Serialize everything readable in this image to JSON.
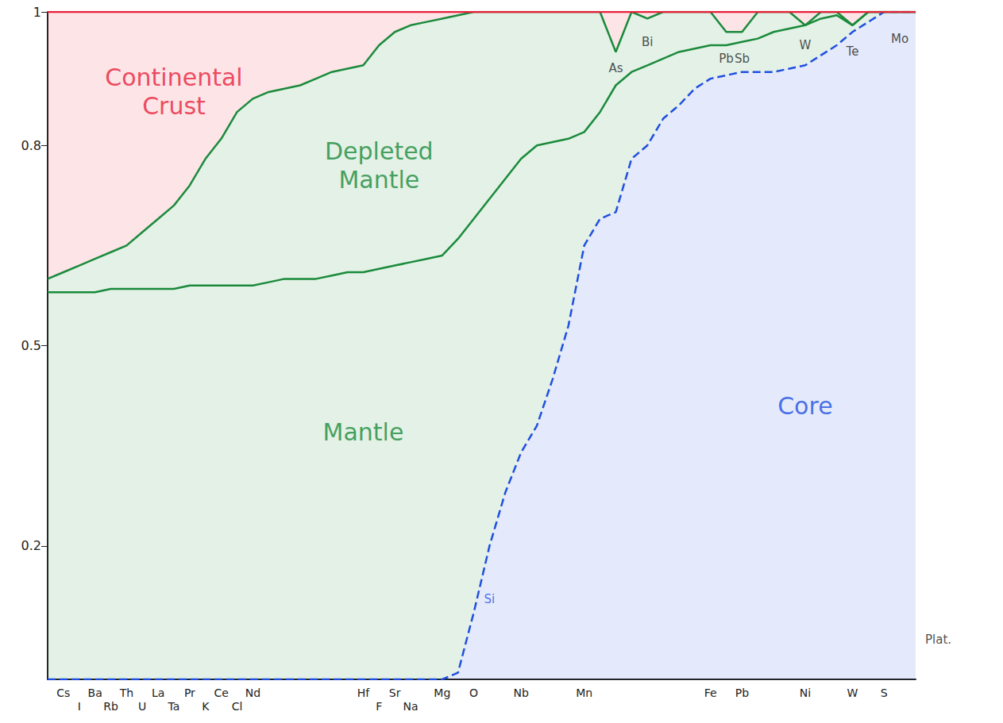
{
  "chart_data": {
    "type": "area",
    "stacked": true,
    "grid": false,
    "categories": [
      null,
      "Cs",
      "I",
      "Ba",
      "Rb",
      "Th",
      "U",
      "La",
      "Ta",
      "Pr",
      "K",
      "Ce",
      "Cl",
      "Nd",
      null,
      null,
      null,
      null,
      null,
      null,
      "Hf",
      "F",
      "Sr",
      "Na",
      null,
      "Mg",
      null,
      "O",
      null,
      null,
      "Nb",
      null,
      null,
      null,
      "Mn",
      null,
      null,
      null,
      null,
      null,
      null,
      null,
      "Fe",
      null,
      "Pb",
      null,
      null,
      null,
      "Ni",
      null,
      null,
      "W",
      null,
      "S",
      null,
      null
    ],
    "series": [
      {
        "name": "Core",
        "color": "#1f4fe0",
        "line_style": "dashed",
        "values": [
          0,
          0,
          0,
          0,
          0,
          0,
          0,
          0,
          0,
          0,
          0,
          0,
          0,
          0,
          0,
          0,
          0,
          0,
          0,
          0,
          0,
          0,
          0,
          0,
          0,
          0,
          0.01,
          0.1,
          0.2,
          0.28,
          0.34,
          0.38,
          0.45,
          0.53,
          0.65,
          0.69,
          0.7,
          0.78,
          0.8,
          0.84,
          0.86,
          0.885,
          0.9,
          0.905,
          0.91,
          0.91,
          0.91,
          0.915,
          0.92,
          0.935,
          0.95,
          0.97,
          0.985,
          1,
          1,
          1
        ]
      },
      {
        "name": "Mantle",
        "color": "#1a8a3a",
        "line_style": "solid",
        "values": [
          0.58,
          0.58,
          0.58,
          0.58,
          0.585,
          0.585,
          0.585,
          0.585,
          0.585,
          0.59,
          0.59,
          0.59,
          0.59,
          0.59,
          0.595,
          0.6,
          0.6,
          0.6,
          0.605,
          0.61,
          0.61,
          0.615,
          0.62,
          0.625,
          0.63,
          0.635,
          0.65,
          0.59,
          0.52,
          0.47,
          0.44,
          0.42,
          0.355,
          0.28,
          0.17,
          0.16,
          0.19,
          0.13,
          0.12,
          0.09,
          0.08,
          0.06,
          0.05,
          0.045,
          0.045,
          0.05,
          0.06,
          0.06,
          0.06,
          0.055,
          0.045,
          0.01,
          0.015,
          0,
          0,
          0
        ]
      },
      {
        "name": "Depleted Mantle",
        "color": "#1a8a3a",
        "line_style": "solid",
        "values": [
          0.02,
          0.03,
          0.04,
          0.05,
          0.055,
          0.065,
          0.085,
          0.105,
          0.125,
          0.15,
          0.19,
          0.22,
          0.26,
          0.28,
          0.285,
          0.285,
          0.29,
          0.3,
          0.305,
          0.305,
          0.31,
          0.335,
          0.35,
          0.355,
          0.355,
          0.355,
          0.335,
          0.31,
          0.28,
          0.25,
          0.22,
          0.2,
          0.195,
          0.19,
          0.18,
          0.15,
          0.05,
          0.09,
          0.07,
          0.07,
          0.06,
          0.055,
          0.05,
          0.02,
          0.015,
          0.04,
          0.03,
          0.025,
          0,
          0.01,
          0.005,
          0,
          0,
          0,
          0,
          0
        ]
      },
      {
        "name": "Continental Crust",
        "color": "#e8213a",
        "line_style": "solid",
        "values": [
          0.4,
          0.39,
          0.38,
          0.37,
          0.36,
          0.35,
          0.33,
          0.31,
          0.29,
          0.26,
          0.22,
          0.19,
          0.15,
          0.13,
          0.12,
          0.115,
          0.11,
          0.1,
          0.09,
          0.085,
          0.08,
          0.05,
          0.03,
          0.02,
          0.015,
          0.01,
          0.005,
          0,
          0,
          0,
          0,
          0,
          0,
          0,
          0,
          0,
          0.06,
          0,
          0.01,
          0,
          0,
          0,
          0,
          0.03,
          0.03,
          0,
          0,
          0,
          0.02,
          0,
          0,
          0.02,
          0,
          0,
          0,
          0
        ]
      }
    ],
    "ylim": [
      0,
      1
    ],
    "yticks": [
      0.2,
      0.5,
      0.8,
      1
    ],
    "annotations": [
      {
        "text": "Continental Crust",
        "x": 8,
        "y": 0.88,
        "color": "#e8213a"
      },
      {
        "text": "Depleted Mantle",
        "x": 21,
        "y": 0.77,
        "color": "#1a8a3a"
      },
      {
        "text": "Mantle",
        "x": 20,
        "y": 0.37,
        "color": "#1a8a3a"
      },
      {
        "text": "Core",
        "x": 48,
        "y": 0.41,
        "color": "#1f4fe0"
      },
      {
        "text": "Si",
        "x": 28,
        "y": 0.12,
        "color": "#1f4fe0"
      },
      {
        "text": "As",
        "x": 36,
        "y": 0.915,
        "color": "#222222"
      },
      {
        "text": "Bi",
        "x": 38,
        "y": 0.955,
        "color": "#222222"
      },
      {
        "text": "Pb",
        "x": 43,
        "y": 0.93,
        "color": "#222222"
      },
      {
        "text": "Sb",
        "x": 44,
        "y": 0.93,
        "color": "#222222"
      },
      {
        "text": "W",
        "x": 48,
        "y": 0.95,
        "color": "#222222"
      },
      {
        "text": "Te",
        "x": 51,
        "y": 0.94,
        "color": "#222222"
      },
      {
        "text": "Mo",
        "x": 54,
        "y": 0.96,
        "color": "#222222"
      },
      {
        "text": "Plat.",
        "x": 55,
        "y": 0.06,
        "color": "#222222"
      }
    ]
  }
}
